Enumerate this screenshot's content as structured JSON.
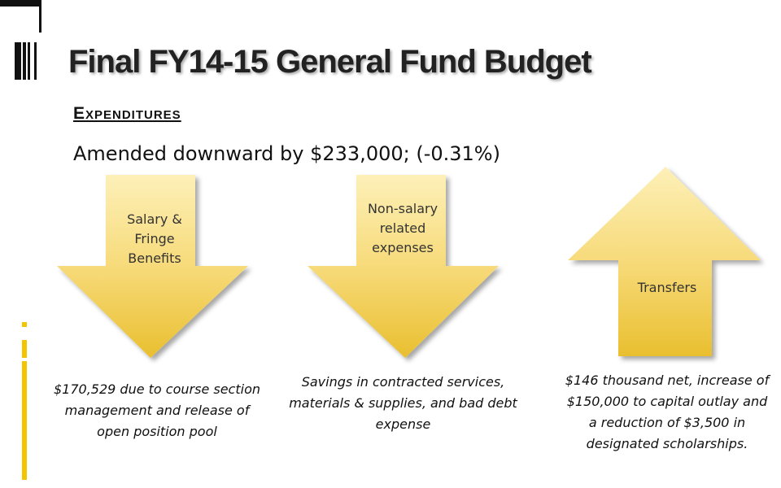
{
  "slide": {
    "title": "Final FY14-15 General Fund Budget",
    "heading": "Expenditures",
    "subheading": "Amended downward by $233,000; (-0.31%)"
  },
  "items": [
    {
      "direction": "down",
      "label": "Salary & Fringe Benefits",
      "caption": "$170,529 due to course section management and release of open position pool"
    },
    {
      "direction": "down",
      "label": "Non-salary related expenses",
      "caption": "Savings in contracted services, materials & supplies, and bad debt expense"
    },
    {
      "direction": "up",
      "label": "Transfers",
      "caption": "$146 thousand net, increase of $150,000 to capital outlay and a reduction of $3,500 in designated scholarships."
    }
  ],
  "colors": {
    "accent": "#f2c500",
    "arrow_light": "#fbe79a",
    "arrow_dark": "#e8c23a"
  }
}
